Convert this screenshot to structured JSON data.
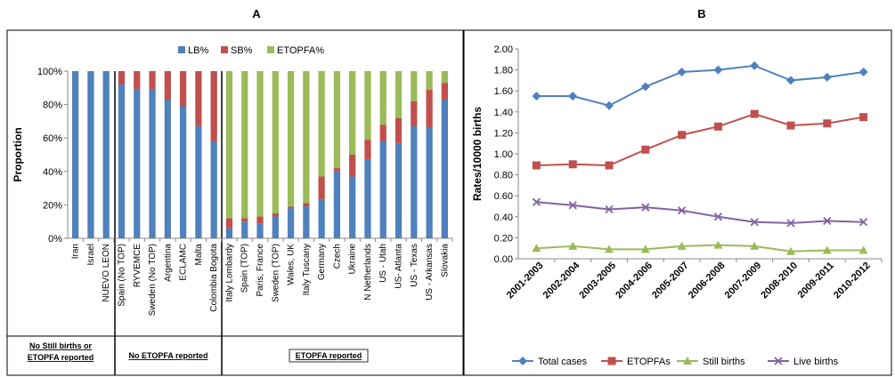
{
  "panel_a_label": "A",
  "panel_b_label": "B",
  "groups": [
    {
      "label_lines": [
        "No Still births or",
        "ETOPFA reported"
      ]
    },
    {
      "label_lines": [
        "No ETOPFA reported"
      ]
    },
    {
      "label_lines": [
        "ETOPFA reported"
      ]
    }
  ],
  "colors": {
    "lb": "#4f81bd",
    "sb": "#c0504d",
    "etopfa": "#9bbb59",
    "live": "#8064a2"
  },
  "chart_data": [
    {
      "type": "bar",
      "stacked": true,
      "ylabel": "Proportion",
      "ylim": [
        0,
        100
      ],
      "yticks": [
        "0%",
        "20%",
        "40%",
        "60%",
        "80%",
        "100%"
      ],
      "legend_position": "top",
      "categories": [
        "Iran",
        "Israel",
        "NUEVO LEON",
        "Spain (No TOP)",
        "RYVEMCE",
        "Sweden (No TOP)",
        "Argentina",
        "ECLAMC",
        "Malta",
        "Colombia Bogota",
        "Italy Lombardy",
        "Spain (TOP)",
        "Paris, France",
        "Sweden (TOP)",
        "Wales, UK",
        "Italy Tuscany",
        "Germany",
        "Czech",
        "Ukraine",
        "N Netherlands",
        "US - Utah",
        "US- Atlanta",
        "US - Texas",
        "US - Arkansas",
        "Slovakia"
      ],
      "series": [
        {
          "name": "LB%",
          "values": [
            100,
            100,
            100,
            92,
            89,
            89,
            83,
            79,
            67,
            58,
            6,
            10,
            9,
            13,
            18,
            19,
            23,
            40,
            37,
            47,
            58,
            57,
            67,
            66,
            83
          ]
        },
        {
          "name": "SB%",
          "values": [
            0,
            0,
            0,
            8,
            11,
            11,
            17,
            21,
            33,
            42,
            6,
            2,
            4,
            2,
            1,
            2,
            14,
            2,
            13,
            12,
            10,
            15,
            15,
            23,
            10
          ]
        },
        {
          "name": "ETOPFA%",
          "values": [
            0,
            0,
            0,
            0,
            0,
            0,
            0,
            0,
            0,
            0,
            88,
            88,
            87,
            85,
            81,
            79,
            63,
            58,
            50,
            41,
            32,
            28,
            18,
            11,
            7
          ]
        }
      ]
    },
    {
      "type": "line",
      "ylabel": "Rates/10000 births",
      "ylim": [
        0,
        2
      ],
      "yticks": [
        "0.00",
        "0.20",
        "0.40",
        "0.60",
        "0.80",
        "1.00",
        "1.20",
        "1.40",
        "1.60",
        "1.80",
        "2.00"
      ],
      "legend_position": "bottom",
      "categories": [
        "2001-2003",
        "2002-2004",
        "2003-2005",
        "2004-2006",
        "2005-2007",
        "2006-2008",
        "2007-2009",
        "2008-2010",
        "2009-2011",
        "2010-2012"
      ],
      "series": [
        {
          "name": "Total cases",
          "marker": "diamond",
          "values": [
            1.55,
            1.55,
            1.46,
            1.64,
            1.78,
            1.8,
            1.84,
            1.7,
            1.73,
            1.78
          ]
        },
        {
          "name": "ETOPFAs",
          "marker": "square",
          "values": [
            0.89,
            0.9,
            0.89,
            1.04,
            1.18,
            1.26,
            1.38,
            1.27,
            1.29,
            1.35
          ]
        },
        {
          "name": "Still births",
          "marker": "triangle",
          "values": [
            0.1,
            0.12,
            0.09,
            0.09,
            0.12,
            0.13,
            0.12,
            0.07,
            0.08,
            0.08
          ]
        },
        {
          "name": "Live births",
          "marker": "cross",
          "values": [
            0.54,
            0.51,
            0.47,
            0.49,
            0.46,
            0.4,
            0.35,
            0.34,
            0.36,
            0.35
          ]
        }
      ]
    }
  ]
}
